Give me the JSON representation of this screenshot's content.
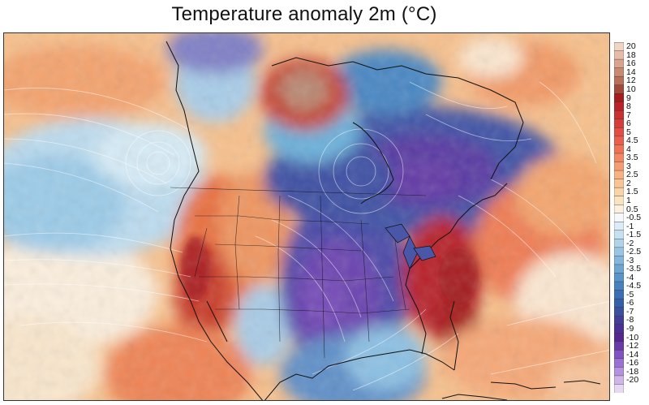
{
  "title": "Temperature anomaly 2m (°C)",
  "colorbar": {
    "labels": [
      "20",
      "18",
      "16",
      "14",
      "12",
      "10",
      "9",
      "8",
      "7",
      "6",
      "5",
      "4.5",
      "4",
      "3.5",
      "3",
      "2.5",
      "2",
      "1.5",
      "1",
      "0.5",
      "-0.5",
      "-1",
      "-1.5",
      "-2",
      "-2.5",
      "-3",
      "-3.5",
      "-4",
      "-4.5",
      "-5",
      "-6",
      "-7",
      "-8",
      "-9",
      "-10",
      "-12",
      "-14",
      "-16",
      "-18",
      "-20"
    ],
    "colors": [
      "#f0d5c5",
      "#e6bca8",
      "#d9a38e",
      "#c98a72",
      "#b8705a",
      "#a04a3c",
      "#a51c1e",
      "#b8232a",
      "#c93030",
      "#d63d3a",
      "#e04e44",
      "#e8604d",
      "#ee7356",
      "#f28863",
      "#f59d72",
      "#f7b283",
      "#f8c494",
      "#f9d4a8",
      "#fae3c1",
      "#fbf0df",
      "#f6f8fb",
      "#dcebf5",
      "#c6e0f0",
      "#b0d3ea",
      "#99c5e3",
      "#83b6dc",
      "#6da6d3",
      "#5895c9",
      "#4683be",
      "#3a70b3",
      "#3560a9",
      "#3a51a0",
      "#433f99",
      "#4b3194",
      "#55288f",
      "#6a3aa8",
      "#8252c0",
      "#9b70d2",
      "#b592df",
      "#cfb5ea",
      "#e6d8f3"
    ]
  }
}
